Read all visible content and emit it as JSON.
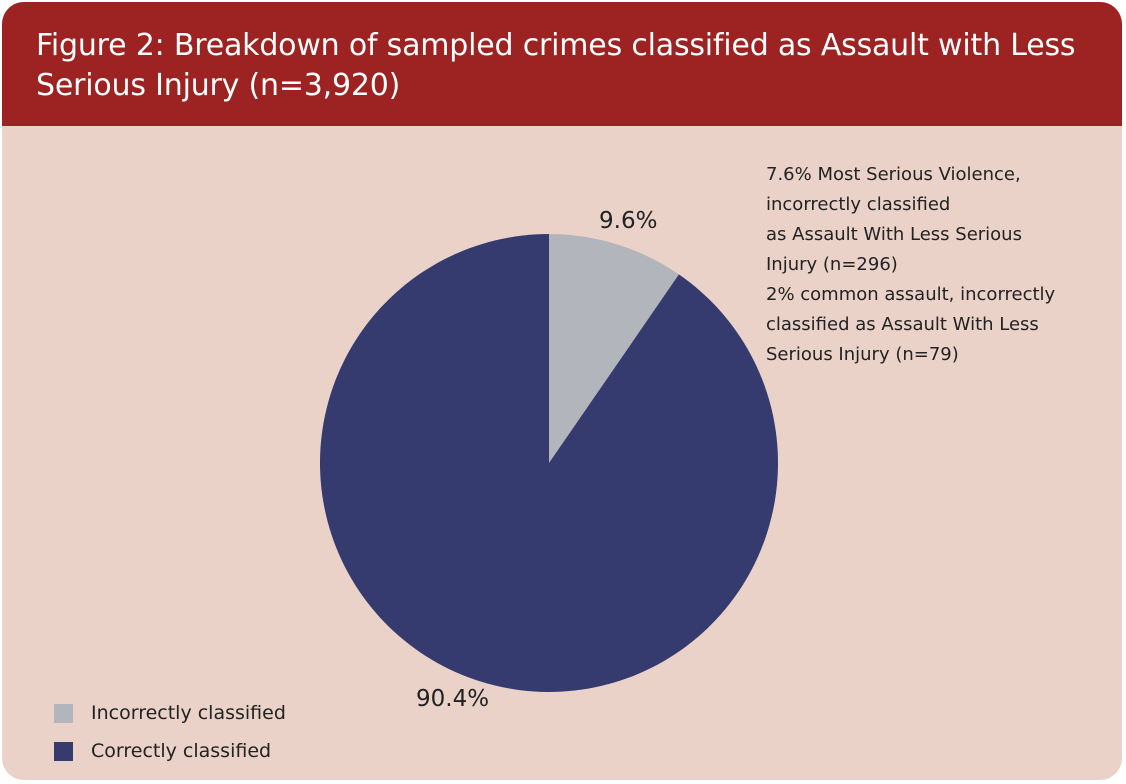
{
  "title": "Figure 2: Breakdown of sampled crimes classified as Assault with Less Serious Injury (n=3,920)",
  "chart_data": {
    "type": "pie",
    "title": "Figure 2: Breakdown of sampled crimes classified as Assault with Less Serious Injury (n=3,920)",
    "slices": [
      {
        "name": "Incorrectly classified",
        "value": 9.6,
        "label": "9.6%",
        "color": "#b3b5bd"
      },
      {
        "name": "Correctly classified",
        "value": 90.4,
        "label": "90.4%",
        "color": "#353b6e"
      }
    ],
    "legend": [
      "Incorrectly classified",
      "Correctly classified"
    ],
    "legend_position": "bottom-left",
    "annotations": [
      "7.6% Most Serious Violence,\nincorrectly classified\nas Assault With Less Serious\nInjury (n=296)",
      "2% common assault, incorrectly\nclassified as Assault With Less\nSerious Injury (n=79)"
    ]
  },
  "colors": {
    "header": "#9c2321",
    "background": "#ead2c9"
  }
}
